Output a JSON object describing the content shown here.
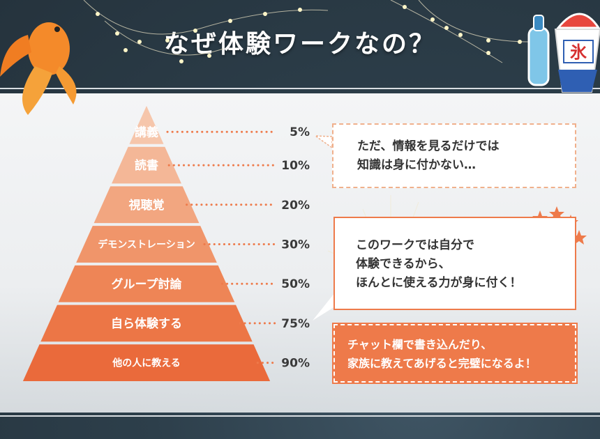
{
  "title": "なぜ体験ワークなの？",
  "chart_data": {
    "type": "pyramid",
    "tiers": [
      {
        "label": "講義",
        "value": 5,
        "value_label": "5%"
      },
      {
        "label": "読書",
        "value": 10,
        "value_label": "10%"
      },
      {
        "label": "視聴覚",
        "value": 20,
        "value_label": "20%"
      },
      {
        "label": "デモンストレーション",
        "value": 30,
        "value_label": "30%"
      },
      {
        "label": "グループ討論",
        "value": 50,
        "value_label": "50%"
      },
      {
        "label": "自ら体験する",
        "value": 75,
        "value_label": "75%"
      },
      {
        "label": "他の人に教える",
        "value": 90,
        "value_label": "90%"
      }
    ],
    "colors": [
      "#f6c6ab",
      "#f4b797",
      "#f2a680",
      "#f0956a",
      "#ee8556",
      "#ec7646",
      "#ea6a3b"
    ]
  },
  "notes": [
    {
      "lines": [
        "ただ、情報を見るだけでは",
        "知識は身に付かない…"
      ]
    },
    {
      "lines": [
        "このワークでは自分で",
        "体験できるから、",
        "ほんとに使える力が身に付く！"
      ]
    },
    {
      "lines": [
        "チャット欄で書き込んだり、",
        "家族に教えてあげると完璧になるよ！"
      ]
    }
  ],
  "decorations": {
    "left": "goldfish-icon",
    "right": [
      "ramune-bottle-icon",
      "shaved-ice-icon"
    ],
    "shaved_ice_flag": "氷",
    "note_icons": [
      "water-drop-icon",
      "thumbs-up-icon"
    ],
    "accent": "#ee7a4a"
  }
}
